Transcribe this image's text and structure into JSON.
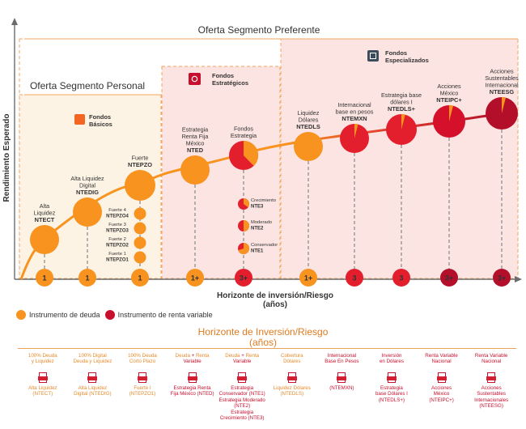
{
  "chart_data": {
    "type": "bubble-ladder",
    "ylabel": "Rendimiento Esperado",
    "xlabel": "Horizonte de inversión/Riesgo",
    "xlabel_sub": "(años)",
    "segments": [
      {
        "name": "Oferta Segmento Preferente"
      },
      {
        "name": "Oferta Segmento Personal"
      }
    ],
    "groups": [
      {
        "name_line1": "Fondos",
        "name_line2": "Básicos"
      },
      {
        "name_line1": "Fondos",
        "name_line2": "Estratégicos"
      },
      {
        "name_line1": "Fondos",
        "name_line2": "Especializados"
      }
    ],
    "funds": [
      {
        "label": [
          "Alta",
          "Liquidez"
        ],
        "code": "NTECT",
        "type": "deuda",
        "horizon": "1"
      },
      {
        "label": [
          "Alta Liquidez",
          "Digital"
        ],
        "code": "NTEDIG",
        "type": "deuda",
        "horizon": "1"
      },
      {
        "label": [
          "Fuerte"
        ],
        "code": "NTEPZO",
        "type": "deuda",
        "horizon": "1"
      },
      {
        "label": [
          "Estrategia",
          "Renta Fija",
          "México"
        ],
        "code": "NTED",
        "type": "deuda",
        "horizon": "1+"
      },
      {
        "label": [
          "Fondos",
          "Estrategia"
        ],
        "code": "",
        "type": "mixto",
        "horizon": "3+"
      },
      {
        "label": [
          "Liquidez",
          "Dólares"
        ],
        "code": "NTEDLS",
        "type": "deuda",
        "horizon": "1+"
      },
      {
        "label": [
          "Internacional",
          "base en pesos"
        ],
        "code": "NTEMXN",
        "type": "renta_variable",
        "horizon": "3"
      },
      {
        "label": [
          "Estrategia base",
          "dólares I"
        ],
        "code": "NTEDLS+",
        "type": "renta_variable",
        "horizon": "3"
      },
      {
        "label": [
          "Acciones",
          "México"
        ],
        "code": "NTEIPC+",
        "type": "renta_variable",
        "horizon": "3+"
      },
      {
        "label": [
          "Acciones",
          "Sustentables",
          "Internacional"
        ],
        "code": "NTEESG",
        "type": "renta_variable",
        "horizon": "3+"
      }
    ],
    "sub_funds_pzo": [
      {
        "label": "Fuerte 4",
        "code": "NTEPZO4"
      },
      {
        "label": "Fuerte 3",
        "code": "NTEPZO3"
      },
      {
        "label": "Fuerte 2",
        "code": "NTEPZO2"
      },
      {
        "label": "Fuerte 1",
        "code": "NTEPZO1"
      }
    ],
    "sub_funds_estrategia": [
      {
        "label": "Crecimiento",
        "code": "NTE3"
      },
      {
        "label": "Moderado",
        "code": "NTE2"
      },
      {
        "label": "Conservador",
        "code": "NTE1"
      }
    ]
  },
  "legend": {
    "deuda": "Instrumento de deuda",
    "renta_variable": "Instrumento de renta variable"
  },
  "colors": {
    "deuda": "#f7931e",
    "renta_variable": "#c8102e",
    "accent": "#e07b20"
  },
  "bottom": {
    "title": "Horizonte de Inversión/Riesgo",
    "subtitle": "(años)",
    "columns": [
      {
        "head": [
          "100% Deuda",
          "y Liquidez"
        ],
        "foot": [
          "Alta Liquidez",
          "(NTECT)"
        ],
        "color": "orange"
      },
      {
        "head": [
          "100% Digital",
          "Deuda y Liquidez"
        ],
        "foot": [
          "Alta Liquidez",
          "Digital (NTEDIG)"
        ],
        "color": "orange"
      },
      {
        "head": [
          "100% Deuda",
          "Corto Plazo"
        ],
        "foot": [
          "Fuerte I",
          "(NTEPZO1)"
        ],
        "color": "orange"
      },
      {
        "head_parts": [
          [
            "Deuda ",
            "o"
          ],
          [
            "+ ",
            "r"
          ],
          [
            "Renta",
            "o"
          ]
        ],
        "head2": "Variable",
        "head2_color": "r",
        "foot": [
          "Estrategia Renta",
          "Fija México (NTED)"
        ],
        "color": "red"
      },
      {
        "head_parts": [
          [
            "Deuda ",
            "o"
          ],
          [
            "+ ",
            "r"
          ],
          [
            "Renta",
            "o"
          ]
        ],
        "head2": "Variable",
        "head2_color": "r",
        "foot": [
          "Estrategia Conservador (NTE1)",
          "Estrategia Moderado (NTE2)",
          "Estrategia Crecimiento (NTE3)"
        ],
        "color": "red"
      },
      {
        "head": [
          "Cobertura",
          "Dólares"
        ],
        "foot": [
          "Liquidez Dólares",
          "(NTEDLS)"
        ],
        "color": "orange"
      },
      {
        "head": [
          "Internacional",
          "Base En Pesos"
        ],
        "foot": [
          "(NTEMXN)"
        ],
        "color": "red"
      },
      {
        "head": [
          "Inversión",
          "en Dólares"
        ],
        "foot": [
          "Estrategia",
          "base Dólares I",
          "(NTEDLS+)"
        ],
        "color": "red"
      },
      {
        "head": [
          "Renta Variable",
          "Nacional"
        ],
        "foot": [
          "Acciones",
          "México",
          "(NTEIPC+)"
        ],
        "color": "red"
      },
      {
        "head": [
          "Renta Variable",
          "Nacional"
        ],
        "foot": [
          "Acciones",
          "Sustentables",
          "Internacionales",
          "(NTEESG)"
        ],
        "color": "red"
      }
    ]
  }
}
